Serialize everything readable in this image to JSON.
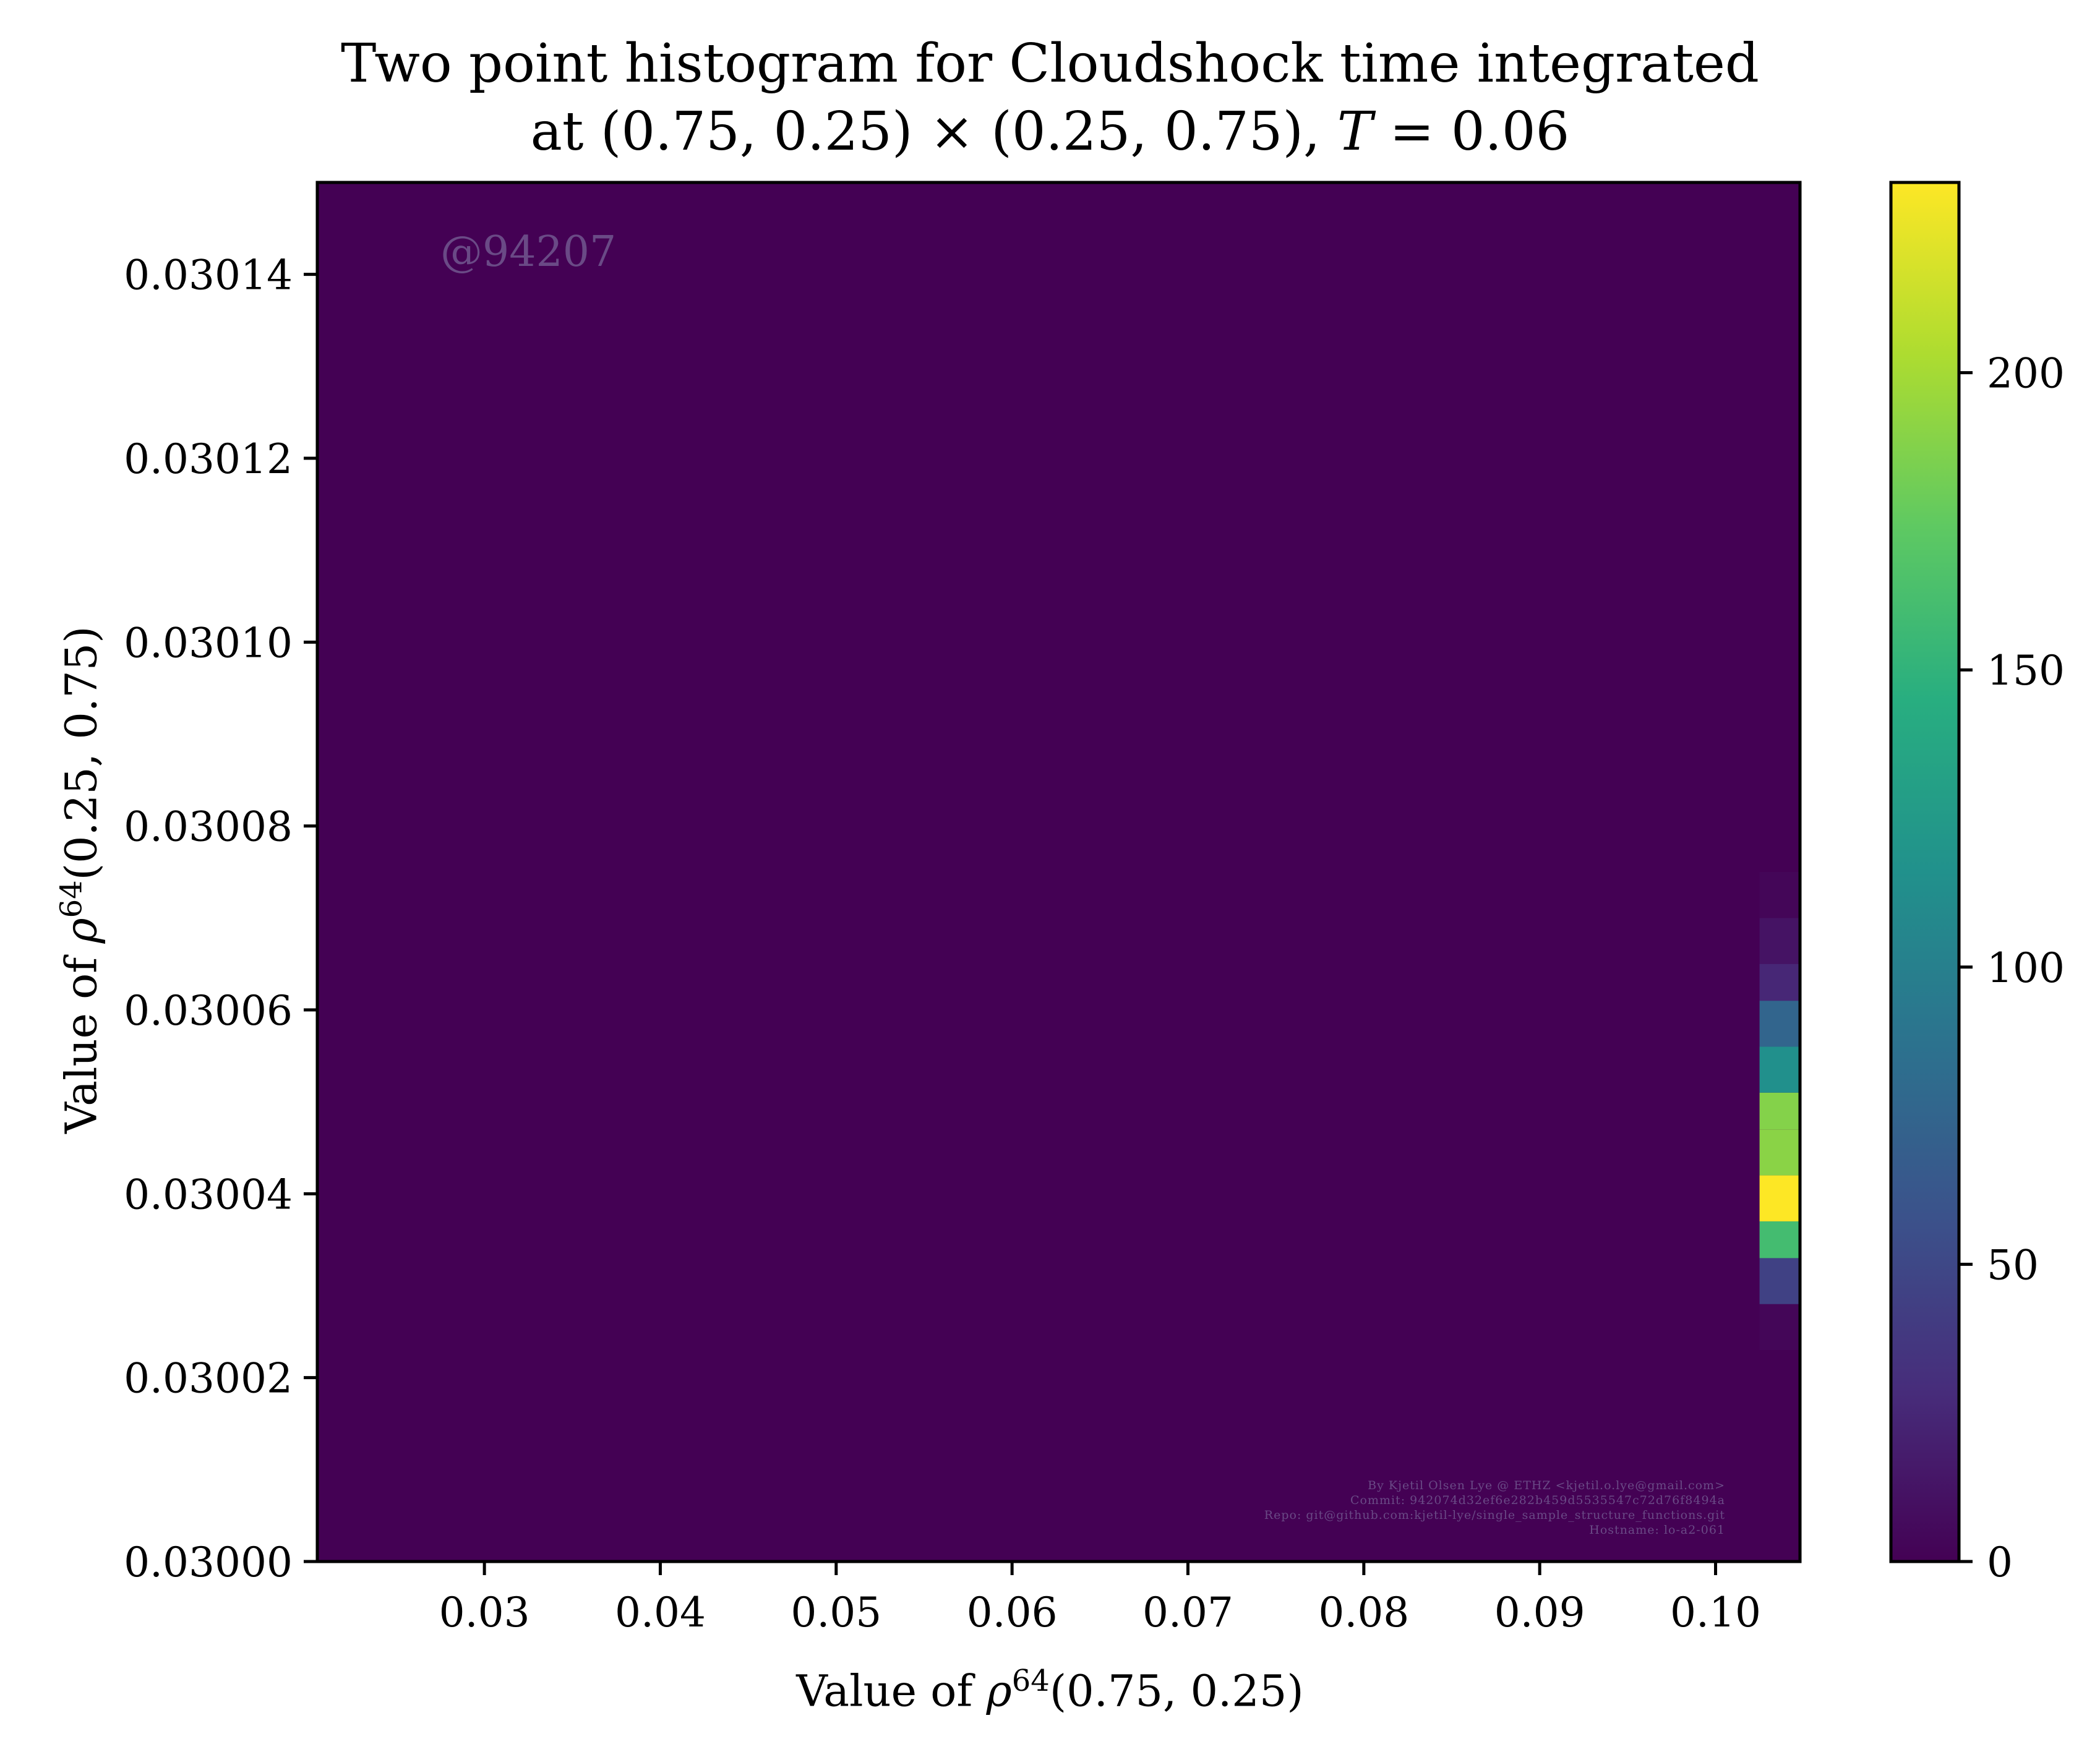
{
  "chart_data": {
    "type": "heatmap",
    "title_line1": "Two point histogram for Cloudshock time integrated",
    "title_line2_parts": {
      "prefix": "at (0.75, 0.25) × (0.25, 0.75), ",
      "var": "T",
      "suffix": " = 0.06"
    },
    "xlabel": {
      "prefix": "Value of ",
      "sym": "ρ",
      "sup": "64",
      "suffix": "(0.75, 0.25)"
    },
    "ylabel": {
      "prefix": "Value of ",
      "sym": "ρ",
      "sup": "64",
      "suffix": "(0.25, 0.75)"
    },
    "xlim": [
      0.0205,
      0.1048
    ],
    "ylim": [
      0.03,
      0.03015
    ],
    "xticks": [
      0.03,
      0.04,
      0.05,
      0.06,
      0.07,
      0.08,
      0.09,
      0.1
    ],
    "xtick_labels": [
      "0.03",
      "0.04",
      "0.05",
      "0.06",
      "0.07",
      "0.08",
      "0.09",
      "0.10"
    ],
    "yticks": [
      0.03,
      0.03002,
      0.03004,
      0.03006,
      0.03008,
      0.0301,
      0.03012,
      0.03014
    ],
    "ytick_labels": [
      "0.03000",
      "0.03002",
      "0.03004",
      "0.03006",
      "0.03008",
      "0.03010",
      "0.03012",
      "0.03014"
    ],
    "colorbar": {
      "colormap": "viridis",
      "range": [
        0,
        232
      ],
      "ticks": [
        0,
        50,
        100,
        150,
        200
      ],
      "tick_labels": [
        "0",
        "50",
        "100",
        "150",
        "200"
      ]
    },
    "background_count": 0,
    "cells": [
      {
        "x0": 0.1025,
        "x1": 0.1048,
        "y0": 0.030023,
        "y1": 0.030028,
        "count": 3
      },
      {
        "x0": 0.1025,
        "x1": 0.1048,
        "y0": 0.030028,
        "y1": 0.030033,
        "count": 45
      },
      {
        "x0": 0.1025,
        "x1": 0.1048,
        "y0": 0.030033,
        "y1": 0.030037,
        "count": 160
      },
      {
        "x0": 0.1025,
        "x1": 0.1048,
        "y0": 0.030037,
        "y1": 0.030042,
        "count": 232
      },
      {
        "x0": 0.1025,
        "x1": 0.1048,
        "y0": 0.030042,
        "y1": 0.030047,
        "count": 190
      },
      {
        "x0": 0.1025,
        "x1": 0.1048,
        "y0": 0.030047,
        "y1": 0.030051,
        "count": 188
      },
      {
        "x0": 0.1025,
        "x1": 0.1048,
        "y0": 0.030051,
        "y1": 0.030056,
        "count": 115
      },
      {
        "x0": 0.1025,
        "x1": 0.1048,
        "y0": 0.030056,
        "y1": 0.030061,
        "count": 75
      },
      {
        "x0": 0.1025,
        "x1": 0.1048,
        "y0": 0.030061,
        "y1": 0.030065,
        "count": 25
      },
      {
        "x0": 0.1025,
        "x1": 0.1048,
        "y0": 0.030065,
        "y1": 0.03007,
        "count": 12
      },
      {
        "x0": 0.1025,
        "x1": 0.1048,
        "y0": 0.03007,
        "y1": 0.030075,
        "count": 3
      }
    ]
  },
  "watermark": "@94207",
  "credits": [
    "By Kjetil Olsen Lye @ ETHZ <kjetil.o.lye@gmail.com>",
    "Commit: 942074d32ef6e282b459d5535547c72d76f8494a",
    "Repo: git@github.com:kjetil-lye/single_sample_structure_functions.git",
    "Hostname: lo-a2-061"
  ]
}
